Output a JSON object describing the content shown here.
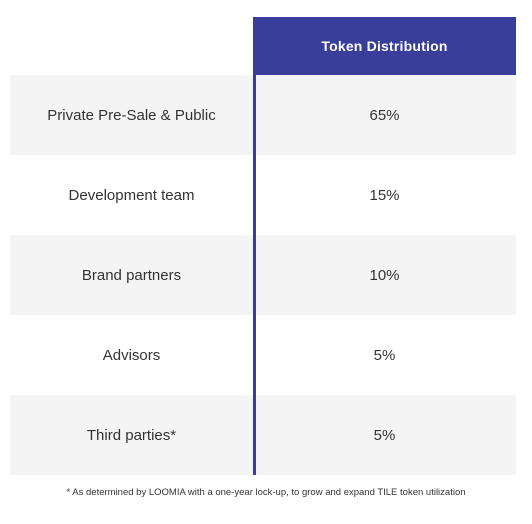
{
  "table": {
    "header": "Token Distribution",
    "rows": [
      {
        "label": "Private Pre-Sale & Public",
        "value": "65%"
      },
      {
        "label": "Development team",
        "value": "15%"
      },
      {
        "label": "Brand partners",
        "value": "10%"
      },
      {
        "label": "Advisors",
        "value": "5%"
      },
      {
        "label": "Third parties*",
        "value": "5%"
      }
    ]
  },
  "footnote": "* As determined by LOOMIA with a one-year lock-up, to grow and expand TILE token utilization",
  "colors": {
    "accent": "#3a3e9b",
    "row_shade": "#f4f4f4"
  }
}
